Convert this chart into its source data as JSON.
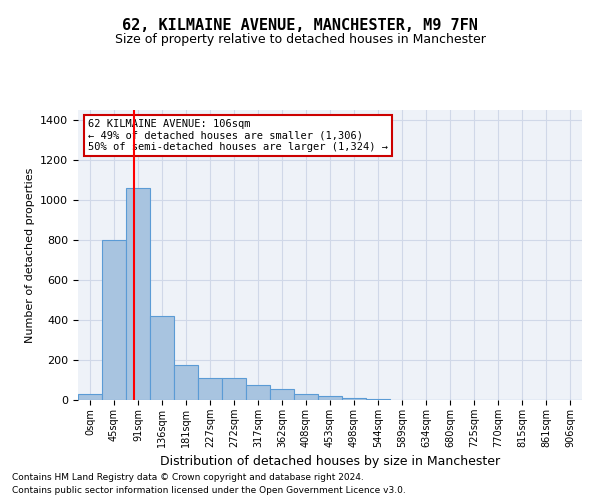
{
  "title": "62, KILMAINE AVENUE, MANCHESTER, M9 7FN",
  "subtitle": "Size of property relative to detached houses in Manchester",
  "xlabel": "Distribution of detached houses by size in Manchester",
  "ylabel": "Number of detached properties",
  "footnote1": "Contains HM Land Registry data © Crown copyright and database right 2024.",
  "footnote2": "Contains public sector information licensed under the Open Government Licence v3.0.",
  "bin_labels": [
    "0sqm",
    "45sqm",
    "91sqm",
    "136sqm",
    "181sqm",
    "227sqm",
    "272sqm",
    "317sqm",
    "362sqm",
    "408sqm",
    "453sqm",
    "498sqm",
    "544sqm",
    "589sqm",
    "634sqm",
    "680sqm",
    "725sqm",
    "770sqm",
    "815sqm",
    "861sqm",
    "906sqm"
  ],
  "bar_heights": [
    30,
    800,
    1060,
    420,
    175,
    110,
    110,
    75,
    55,
    30,
    20,
    10,
    5,
    0,
    0,
    0,
    0,
    0,
    0,
    0,
    0
  ],
  "bar_color": "#a8c4e0",
  "bar_edge_color": "#5b9bd5",
  "grid_color": "#d0d8e8",
  "background_color": "#eef2f8",
  "annotation_text": "62 KILMAINE AVENUE: 106sqm\n← 49% of detached houses are smaller (1,306)\n50% of semi-detached houses are larger (1,324) →",
  "annotation_box_color": "#ffffff",
  "annotation_box_edge": "#cc0000",
  "ylim": [
    0,
    1450
  ],
  "yticks": [
    0,
    200,
    400,
    600,
    800,
    1000,
    1200,
    1400
  ],
  "red_line_x": 1.83
}
